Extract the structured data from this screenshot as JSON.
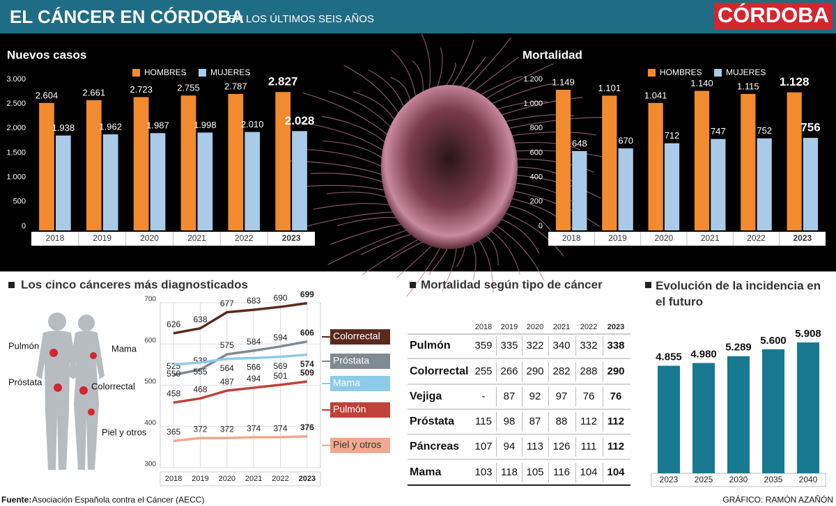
{
  "header": {
    "title": "EL CÁNCER EN CÓRDOBA",
    "subtitle": "EN LOS ÚLTIMOS SEIS AÑOS",
    "brand": "CÓRDOBA"
  },
  "chart_data": [
    {
      "type": "bar",
      "title": "Nuevos casos",
      "categories": [
        "2018",
        "2019",
        "2020",
        "2021",
        "2022",
        "2023"
      ],
      "series": [
        {
          "name": "HOMBRES",
          "color": "#f28a30",
          "values": [
            2604,
            2661,
            2723,
            2755,
            2787,
            2827
          ],
          "value_labels": [
            "2.604",
            "2.661",
            "2.723",
            "2.755",
            "2.787",
            "2.827"
          ]
        },
        {
          "name": "MUJERES",
          "color": "#a9cbe8",
          "values": [
            1938,
            1962,
            1987,
            1998,
            2010,
            2028
          ],
          "value_labels": [
            "1.938",
            "1.962",
            "1.987",
            "1.998",
            "2.010",
            "2.028"
          ]
        }
      ],
      "ylim": [
        0,
        3000
      ],
      "yticks": [
        0,
        500,
        {
          "value": 1000,
          "label": "1.000"
        },
        {
          "value": 1500,
          "label": "1.500"
        },
        {
          "value": 2000,
          "label": "2.000"
        },
        {
          "value": 2500,
          "label": "2.500"
        },
        {
          "value": 3000,
          "label": "3.000"
        }
      ]
    },
    {
      "type": "bar",
      "title": "Mortalidad",
      "categories": [
        "2018",
        "2019",
        "2020",
        "2021",
        "2022",
        "2023"
      ],
      "series": [
        {
          "name": "HOMBRES",
          "color": "#f28a30",
          "values": [
            1149,
            1101,
            1041,
            1140,
            1115,
            1128
          ],
          "value_labels": [
            "1.149",
            "1.101",
            "1.041",
            "1.140",
            "1.115",
            "1.128"
          ]
        },
        {
          "name": "MUJERES",
          "color": "#a9cbe8",
          "values": [
            648,
            670,
            712,
            747,
            752,
            756
          ]
        }
      ],
      "ylim": [
        0,
        1200
      ],
      "yticks": [
        0,
        200,
        400,
        600,
        800,
        {
          "value": 1000,
          "label": "1.000"
        },
        {
          "value": 1200,
          "label": "1.200"
        }
      ]
    },
    {
      "type": "line",
      "title": "Los cinco cánceres más diagnosticados",
      "categories": [
        "2018",
        "2019",
        "2020",
        "2021",
        "2022",
        "2023"
      ],
      "series": [
        {
          "name": "Colorrectal",
          "color": "#5a2a1e",
          "values": [
            626,
            638,
            677,
            683,
            690,
            699
          ]
        },
        {
          "name": "Próstata",
          "color": "#7f8a92",
          "values": [
            525,
            538,
            575,
            584,
            594,
            606
          ]
        },
        {
          "name": "Mama",
          "color": "#8ecbe8",
          "values": [
            550,
            555,
            564,
            566,
            569,
            574
          ]
        },
        {
          "name": "Pulmón",
          "color": "#c0413a",
          "values": [
            458,
            468,
            487,
            494,
            501,
            509
          ]
        },
        {
          "name": "Piel y otros",
          "color": "#f0a890",
          "values": [
            365,
            372,
            372,
            374,
            374,
            376
          ]
        }
      ],
      "ylim": [
        300,
        700
      ],
      "yticks": [
        300,
        400,
        500,
        600,
        700
      ],
      "grid": true
    },
    {
      "type": "bar",
      "title": "Evolución de la incidencia en el futuro",
      "categories": [
        "2023",
        "2025",
        "2030",
        "2035",
        "2040"
      ],
      "values": [
        4855,
        4980,
        5289,
        5600,
        5908
      ],
      "value_labels": [
        "4.855",
        "4.980",
        "5.289",
        "5.600",
        "5.908"
      ],
      "color": "#187a91"
    }
  ],
  "table": {
    "title": "Mortalidad según tipo de cáncer",
    "columns": [
      "2018",
      "2019",
      "2020",
      "2021",
      "2022",
      "2023"
    ],
    "rows": [
      {
        "name": "Pulmón",
        "values": [
          359,
          335,
          322,
          340,
          332,
          338
        ]
      },
      {
        "name": "Colorrectal",
        "values": [
          255,
          266,
          290,
          282,
          288,
          290
        ]
      },
      {
        "name": "Vejiga",
        "values": [
          "-",
          87,
          92,
          97,
          76,
          76
        ]
      },
      {
        "name": "Próstata",
        "values": [
          115,
          98,
          87,
          88,
          112,
          112
        ]
      },
      {
        "name": "Páncreas",
        "values": [
          107,
          94,
          113,
          126,
          111,
          112
        ]
      },
      {
        "name": "Mama",
        "values": [
          103,
          118,
          105,
          116,
          104,
          104
        ]
      }
    ]
  },
  "footer": {
    "source_label": "Fuente:",
    "source": "Asociación Española contra el Cáncer (AECC)",
    "credit": "GRÁFICO: RAMÓN AZAÑÓN"
  }
}
